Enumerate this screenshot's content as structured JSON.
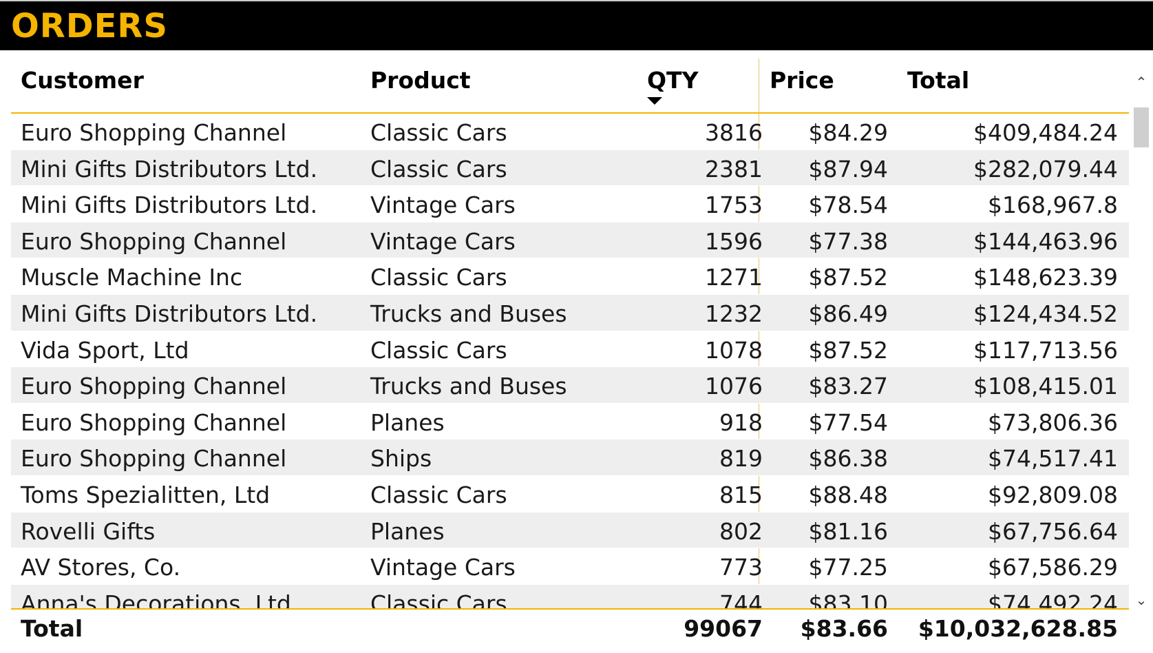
{
  "title": "ORDERS",
  "columns": {
    "customer": "Customer",
    "product": "Product",
    "qty": "QTY",
    "price": "Price",
    "total": "Total"
  },
  "sort": {
    "column": "QTY",
    "direction": "descending"
  },
  "rows": [
    {
      "customer": "Euro Shopping Channel",
      "product": "Classic Cars",
      "qty": "3816",
      "price": "$84.29",
      "total": "$409,484.24"
    },
    {
      "customer": "Mini Gifts Distributors Ltd.",
      "product": "Classic Cars",
      "qty": "2381",
      "price": "$87.94",
      "total": "$282,079.44"
    },
    {
      "customer": "Mini Gifts Distributors Ltd.",
      "product": "Vintage Cars",
      "qty": "1753",
      "price": "$78.54",
      "total": "$168,967.8"
    },
    {
      "customer": "Euro Shopping Channel",
      "product": "Vintage Cars",
      "qty": "1596",
      "price": "$77.38",
      "total": "$144,463.96"
    },
    {
      "customer": "Muscle Machine Inc",
      "product": "Classic Cars",
      "qty": "1271",
      "price": "$87.52",
      "total": "$148,623.39"
    },
    {
      "customer": "Mini Gifts Distributors Ltd.",
      "product": "Trucks and Buses",
      "qty": "1232",
      "price": "$86.49",
      "total": "$124,434.52"
    },
    {
      "customer": "Vida Sport, Ltd",
      "product": "Classic Cars",
      "qty": "1078",
      "price": "$87.52",
      "total": "$117,713.56"
    },
    {
      "customer": "Euro Shopping Channel",
      "product": "Trucks and Buses",
      "qty": "1076",
      "price": "$83.27",
      "total": "$108,415.01"
    },
    {
      "customer": "Euro Shopping Channel",
      "product": "Planes",
      "qty": "918",
      "price": "$77.54",
      "total": "$73,806.36"
    },
    {
      "customer": "Euro Shopping Channel",
      "product": "Ships",
      "qty": "819",
      "price": "$86.38",
      "total": "$74,517.41"
    },
    {
      "customer": "Toms Spezialitten, Ltd",
      "product": "Classic Cars",
      "qty": "815",
      "price": "$88.48",
      "total": "$92,809.08"
    },
    {
      "customer": "Rovelli Gifts",
      "product": "Planes",
      "qty": "802",
      "price": "$81.16",
      "total": "$67,756.64"
    },
    {
      "customer": "AV Stores, Co.",
      "product": "Vintage Cars",
      "qty": "773",
      "price": "$77.25",
      "total": "$67,586.29"
    },
    {
      "customer": "Anna's Decorations, Ltd",
      "product": "Classic Cars",
      "qty": "744",
      "price": "$83.10",
      "total": "$74,492.24"
    }
  ],
  "totals": {
    "label": "Total",
    "qty": "99067",
    "price": "$83.66",
    "total": "$10,032,628.85"
  },
  "scrollbar": {
    "up_icon": "chevron-up",
    "down_icon": "chevron-down"
  },
  "colors": {
    "accent": "#f5b400",
    "title_bg": "#000000",
    "alt_row": "#eeeeee"
  }
}
